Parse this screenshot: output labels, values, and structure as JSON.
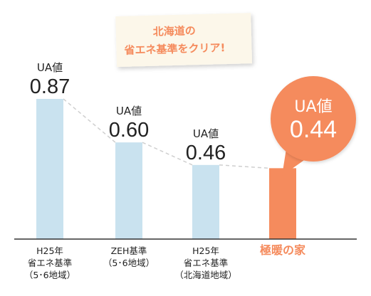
{
  "banner": {
    "line1": "北海道の",
    "line2": "省エネ基準をクリア!"
  },
  "chart_data": {
    "type": "bar",
    "categories": [
      [
        "H25年",
        "省エネ基準",
        "（5･6地域）"
      ],
      [
        "ZEH基準",
        "（5･6地域）"
      ],
      [
        "H25年",
        "省エネ基準",
        "（北海道地域）"
      ],
      [
        "極暖の家"
      ]
    ],
    "series": [
      {
        "values": [
          0.87,
          0.6,
          0.46,
          0.44
        ]
      }
    ],
    "value_labels": [
      {
        "prefix": "UA値",
        "value": "0.87"
      },
      {
        "prefix": "UA値",
        "value": "0.60"
      },
      {
        "prefix": "UA値",
        "value": "0.46"
      },
      {
        "prefix": "UA値",
        "value": "0.44"
      }
    ],
    "highlight_index": 3,
    "ylim": [
      0,
      0.87
    ],
    "grid": false,
    "trend_line": "dashed",
    "colors": {
      "bar": "#c9e2ef",
      "highlight": "#f58b5d",
      "highlight_label": "#f58b5d",
      "banner_text": "#f58b5d",
      "banner_bg": "#fcf7ea",
      "axis": "#333333",
      "text": "#222222",
      "dash": "#cfcfcf"
    }
  }
}
